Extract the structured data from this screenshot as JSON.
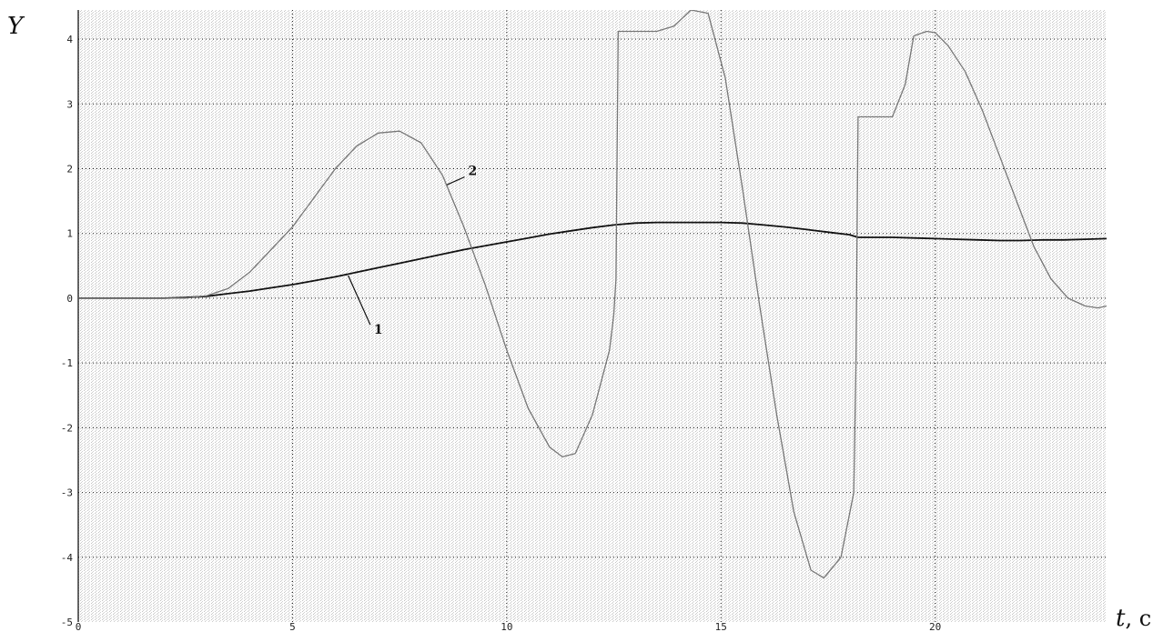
{
  "chart_data": {
    "type": "line",
    "ylabel": "Y",
    "xlabel_var": "t",
    "xlabel_unit": ", c",
    "xlim": [
      0,
      24
    ],
    "ylim": [
      -5,
      4.45
    ],
    "xticks": [
      0,
      5,
      10,
      15,
      20
    ],
    "yticks": [
      -5,
      -4,
      -3,
      -2,
      -1,
      0,
      1,
      2,
      3,
      4
    ],
    "grid": true,
    "series": [
      {
        "name": "1",
        "color": "#111111",
        "x": [
          0,
          2,
          2.5,
          3,
          3.5,
          4,
          4.5,
          5,
          5.5,
          6,
          6.5,
          7,
          7.5,
          8,
          8.5,
          9,
          9.5,
          10,
          10.5,
          11,
          11.5,
          12,
          12.5,
          13,
          13.5,
          14,
          14.5,
          15,
          15.5,
          16,
          16.5,
          17,
          17.5,
          18,
          18.2,
          18.5,
          19,
          19.5,
          20,
          20.5,
          21,
          21.5,
          22,
          22.5,
          23,
          23.5,
          24
        ],
        "y": [
          0,
          0,
          0.01,
          0.03,
          0.07,
          0.11,
          0.16,
          0.21,
          0.27,
          0.33,
          0.4,
          0.47,
          0.54,
          0.61,
          0.68,
          0.75,
          0.81,
          0.87,
          0.93,
          0.99,
          1.04,
          1.09,
          1.13,
          1.16,
          1.17,
          1.17,
          1.17,
          1.17,
          1.16,
          1.13,
          1.1,
          1.06,
          1.02,
          0.98,
          0.94,
          0.94,
          0.94,
          0.93,
          0.92,
          0.91,
          0.9,
          0.89,
          0.89,
          0.9,
          0.9,
          0.91,
          0.92
        ]
      },
      {
        "name": "2",
        "color": "#777777",
        "x": [
          0,
          2.5,
          3,
          3.5,
          4,
          4.5,
          5,
          5.5,
          6,
          6.5,
          7,
          7.5,
          8,
          8.5,
          9,
          9.5,
          10,
          10.5,
          11,
          11.3,
          11.6,
          12,
          12.4,
          12.5,
          12.55,
          12.6,
          13.2,
          13.5,
          13.9,
          14.3,
          14.7,
          15.1,
          15.5,
          15.9,
          16.3,
          16.7,
          17.1,
          17.4,
          17.8,
          18.1,
          18.15,
          18.2,
          18.5,
          19,
          19.3,
          19.5,
          19.8,
          20,
          20.3,
          20.7,
          21.1,
          21.5,
          21.9,
          22.3,
          22.7,
          23.1,
          23.5,
          23.8,
          24
        ],
        "y": [
          0,
          0,
          0.04,
          0.15,
          0.4,
          0.75,
          1.1,
          1.55,
          2.0,
          2.35,
          2.55,
          2.58,
          2.4,
          1.9,
          1.1,
          0.2,
          -0.8,
          -1.7,
          -2.3,
          -2.45,
          -2.4,
          -1.8,
          -0.8,
          -0.25,
          0.3,
          4.12,
          4.12,
          4.12,
          4.2,
          4.45,
          4.4,
          3.4,
          1.7,
          -0.1,
          -1.8,
          -3.3,
          -4.2,
          -4.32,
          -4.0,
          -3.0,
          -1.0,
          2.8,
          2.8,
          2.8,
          3.3,
          4.05,
          4.12,
          4.1,
          3.9,
          3.5,
          2.9,
          2.2,
          1.5,
          0.8,
          0.3,
          0.0,
          -0.12,
          -0.15,
          -0.12
        ]
      }
    ],
    "annotations": [
      {
        "text": "1",
        "x": 6.9,
        "y": -0.55,
        "target_x": 6.3,
        "target_y": 0.35
      },
      {
        "text": "2",
        "x": 9.1,
        "y": 1.9,
        "target_x": 8.6,
        "target_y": 1.75
      }
    ]
  }
}
